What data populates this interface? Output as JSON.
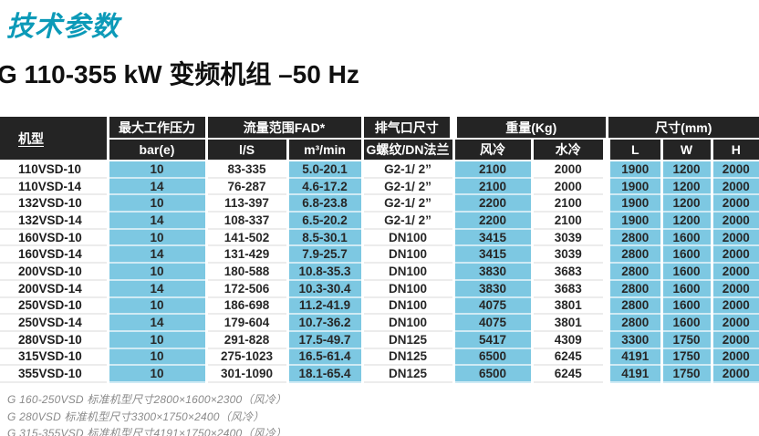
{
  "page": {
    "title": "技术参数",
    "subtitle": "G 110-355 kW 变频机组 –50 Hz"
  },
  "table": {
    "column_groups": [
      {
        "label": "机型"
      },
      {
        "label": "最大工作压力"
      },
      {
        "label": "流量范围FAD*"
      },
      {
        "label": "排气口尺寸"
      },
      {
        "label": "重量(Kg)"
      },
      {
        "label": "尺寸(mm)"
      }
    ],
    "sub_headers": [
      "bar(e)",
      "l/S",
      "m³/min",
      "G螺纹/DN法兰",
      "风冷",
      "水冷",
      "L",
      "W",
      "H"
    ],
    "rows": [
      [
        "110VSD-10",
        "10",
        "83-335",
        "5.0-20.1",
        "G2-1/ 2”",
        "2100",
        "2000",
        "1900",
        "1200",
        "2000"
      ],
      [
        "110VSD-14",
        "14",
        "76-287",
        "4.6-17.2",
        "G2-1/ 2”",
        "2100",
        "2000",
        "1900",
        "1200",
        "2000"
      ],
      [
        "132VSD-10",
        "10",
        "113-397",
        "6.8-23.8",
        "G2-1/ 2”",
        "2200",
        "2100",
        "1900",
        "1200",
        "2000"
      ],
      [
        "132VSD-14",
        "14",
        "108-337",
        "6.5-20.2",
        "G2-1/ 2”",
        "2200",
        "2100",
        "1900",
        "1200",
        "2000"
      ],
      [
        "160VSD-10",
        "10",
        "141-502",
        "8.5-30.1",
        "DN100",
        "3415",
        "3039",
        "2800",
        "1600",
        "2000"
      ],
      [
        "160VSD-14",
        "14",
        "131-429",
        "7.9-25.7",
        "DN100",
        "3415",
        "3039",
        "2800",
        "1600",
        "2000"
      ],
      [
        "200VSD-10",
        "10",
        "180-588",
        "10.8-35.3",
        "DN100",
        "3830",
        "3683",
        "2800",
        "1600",
        "2000"
      ],
      [
        "200VSD-14",
        "14",
        "172-506",
        "10.3-30.4",
        "DN100",
        "3830",
        "3683",
        "2800",
        "1600",
        "2000"
      ],
      [
        "250VSD-10",
        "10",
        "186-698",
        "11.2-41.9",
        "DN100",
        "4075",
        "3801",
        "2800",
        "1600",
        "2000"
      ],
      [
        "250VSD-14",
        "14",
        "179-604",
        "10.7-36.2",
        "DN100",
        "4075",
        "3801",
        "2800",
        "1600",
        "2000"
      ],
      [
        "280VSD-10",
        "10",
        "291-828",
        "17.5-49.7",
        "DN125",
        "5417",
        "4309",
        "3300",
        "1750",
        "2000"
      ],
      [
        "315VSD-10",
        "10",
        "275-1023",
        "16.5-61.4",
        "DN125",
        "6500",
        "6245",
        "4191",
        "1750",
        "2000"
      ],
      [
        "355VSD-10",
        "10",
        "301-1090",
        "18.1-65.4",
        "DN125",
        "6500",
        "6245",
        "4191",
        "1750",
        "2000"
      ]
    ]
  },
  "footnotes": [
    "G 160-250VSD 标准机型尺寸2800×1600×2300（风冷）",
    "G 280VSD 标准机型尺寸3300×1750×2400（风冷）",
    "G 315-355VSD 标准机型尺寸4191×1750×2400（风冷）"
  ],
  "colors": {
    "accent_teal_title": "#0c9ab8",
    "teal_cell": "#7dc8e2",
    "header_bg": "#242424"
  }
}
